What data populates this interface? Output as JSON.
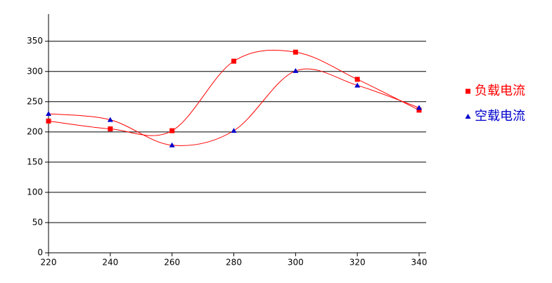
{
  "chart_data": {
    "type": "line",
    "x": [
      220,
      240,
      260,
      280,
      300,
      320,
      340
    ],
    "series": [
      {
        "name": "负载电流",
        "color": "#ff0000",
        "line_color": "#ff0000",
        "marker": "square",
        "values": [
          218,
          205,
          202,
          317,
          332,
          287,
          236
        ]
      },
      {
        "name": "空载电流",
        "color": "#0000cc",
        "line_color": "#ff0000",
        "marker": "triangle",
        "values": [
          230,
          220,
          178,
          202,
          301,
          277,
          240
        ]
      }
    ],
    "xlim": [
      220,
      340
    ],
    "xticks": [
      220,
      240,
      260,
      280,
      300,
      320,
      340
    ],
    "ylim": [
      0,
      395
    ],
    "yticks": [
      0,
      50,
      100,
      150,
      200,
      250,
      300,
      350
    ],
    "grid": true,
    "legend": "right",
    "smooth": true
  }
}
